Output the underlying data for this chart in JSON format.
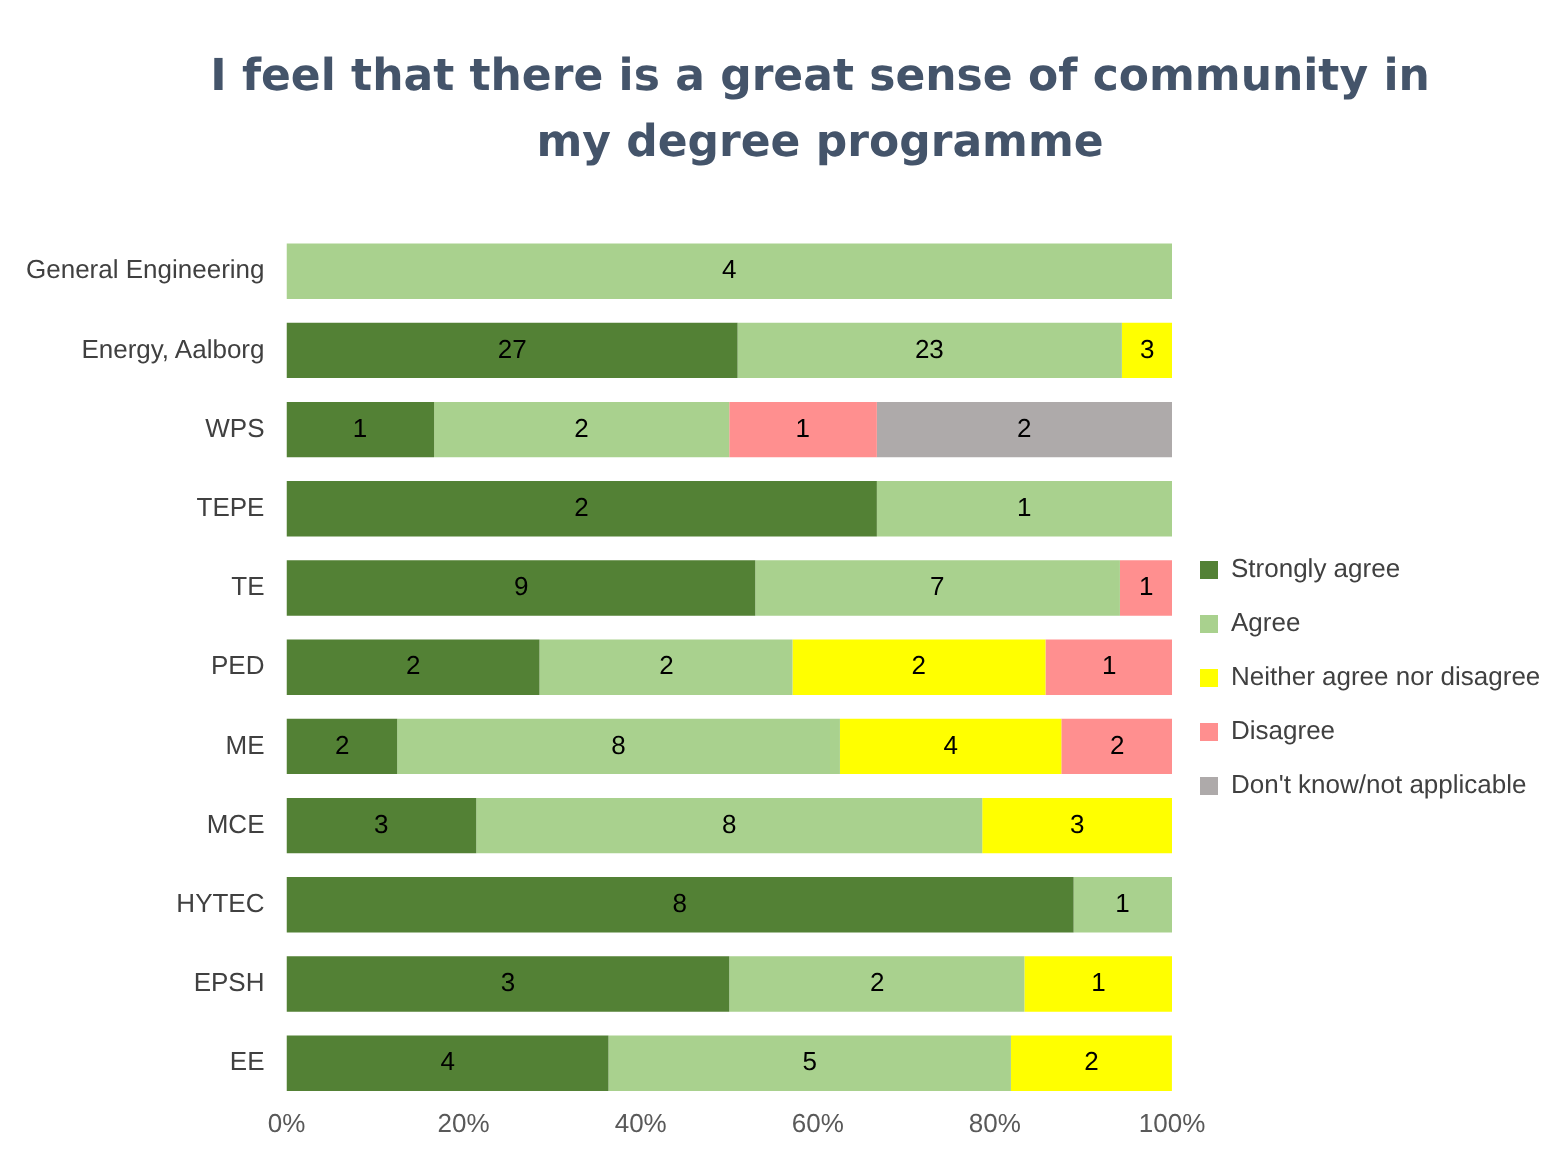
{
  "chart_data": {
    "type": "bar",
    "title": "I feel that there is a great sense of community in my degree programme",
    "orientation": "horizontal",
    "stacked": true,
    "legend": "right",
    "grid": false,
    "categories": [
      "General Engineering",
      "Energy, Aalborg",
      "WPS",
      "TEPE",
      "TE",
      "PED",
      "ME",
      "MCE",
      "HYTEC",
      "EPSH",
      "EE"
    ],
    "xlim": [
      0,
      100
    ],
    "xticks": [
      {
        "value": 0,
        "label": "0%"
      },
      {
        "value": 20,
        "label": "20%"
      },
      {
        "value": 40,
        "label": "40%"
      },
      {
        "value": 60,
        "label": "60%"
      },
      {
        "value": 80,
        "label": "80%"
      },
      {
        "value": 100,
        "label": "100%"
      }
    ],
    "series": [
      {
        "name": "Strongly agree",
        "color": "#538135",
        "values": [
          null,
          50.94,
          16.67,
          66.67,
          52.94,
          28.57,
          12.5,
          21.43,
          88.89,
          50,
          36.36
        ]
      },
      {
        "name": "Agree",
        "color": "#a9d18e",
        "values": [
          100,
          43.4,
          33.33,
          33.33,
          41.18,
          28.57,
          50,
          57.14,
          11.11,
          33.33,
          45.45
        ]
      },
      {
        "name": "Neither agree nor disagree",
        "color": "#ffff00",
        "values": [
          null,
          5.66,
          null,
          null,
          null,
          28.57,
          25,
          21.43,
          null,
          16.67,
          18.18
        ]
      },
      {
        "name": "Disagree",
        "color": "#ff8f8f",
        "values": [
          null,
          null,
          16.67,
          null,
          5.88,
          14.29,
          12.5,
          null,
          null,
          null,
          null
        ]
      },
      {
        "name": "Don't know/not applicable",
        "color": "#aeaaaa",
        "values": [
          null,
          null,
          33.33,
          null,
          null,
          null,
          null,
          null,
          null,
          null,
          null
        ]
      }
    ],
    "annotations": [
      {
        "text": "4",
        "x": 50,
        "y": "General Engineering"
      },
      {
        "text": "27",
        "x": 25.5,
        "y": "Energy, Aalborg"
      },
      {
        "text": "23",
        "x": 72.6,
        "y": "Energy, Aalborg"
      },
      {
        "text": "3",
        "x": 97.2,
        "y": "Energy, Aalborg"
      },
      {
        "text": "1",
        "x": 8.3,
        "y": "WPS"
      },
      {
        "text": "2",
        "x": 33.3,
        "y": "WPS"
      },
      {
        "text": "1",
        "x": 58.3,
        "y": "WPS"
      },
      {
        "text": "2",
        "x": 83.3,
        "y": "WPS"
      },
      {
        "text": "2",
        "x": 33.3,
        "y": "TEPE"
      },
      {
        "text": "1",
        "x": 83.3,
        "y": "TEPE"
      },
      {
        "text": "9",
        "x": 26.5,
        "y": "TE"
      },
      {
        "text": "7",
        "x": 73.5,
        "y": "TE"
      },
      {
        "text": "1",
        "x": 97.1,
        "y": "TE"
      },
      {
        "text": "2",
        "x": 14.3,
        "y": "PED"
      },
      {
        "text": "2",
        "x": 42.9,
        "y": "PED"
      },
      {
        "text": "2",
        "x": 71.4,
        "y": "PED"
      },
      {
        "text": "1",
        "x": 92.9,
        "y": "PED"
      },
      {
        "text": "2",
        "x": 6.3,
        "y": "ME"
      },
      {
        "text": "8",
        "x": 37.5,
        "y": "ME"
      },
      {
        "text": "4",
        "x": 75,
        "y": "ME"
      },
      {
        "text": "2",
        "x": 93.8,
        "y": "ME"
      },
      {
        "text": "3",
        "x": 10.7,
        "y": "MCE"
      },
      {
        "text": "8",
        "x": 50,
        "y": "MCE"
      },
      {
        "text": "3",
        "x": 89.3,
        "y": "MCE"
      },
      {
        "text": "8",
        "x": 44.4,
        "y": "HYTEC"
      },
      {
        "text": "1",
        "x": 94.4,
        "y": "HYTEC"
      },
      {
        "text": "3",
        "x": 25,
        "y": "EPSH"
      },
      {
        "text": "2",
        "x": 66.7,
        "y": "EPSH"
      },
      {
        "text": "1",
        "x": 91.7,
        "y": "EPSH"
      },
      {
        "text": "4",
        "x": 18.2,
        "y": "EE"
      },
      {
        "text": "5",
        "x": 59.1,
        "y": "EE"
      },
      {
        "text": "2",
        "x": 90.9,
        "y": "EE"
      }
    ]
  }
}
